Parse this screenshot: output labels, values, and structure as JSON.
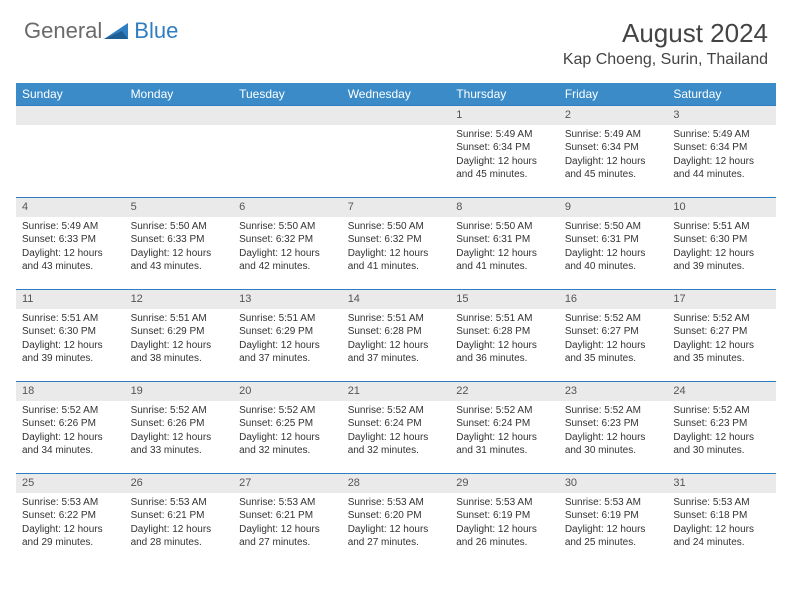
{
  "logo": {
    "textGeneral": "General",
    "textBlue": "Blue",
    "grayColor": "#6a6a6a",
    "blueColor": "#2f7ec2"
  },
  "header": {
    "title": "August 2024",
    "location": "Kap Choeng, Surin, Thailand"
  },
  "colors": {
    "headerRow": "#3b8bc8",
    "dayBar": "#eaeaea",
    "border": "#2f7ec2",
    "text": "#333"
  },
  "daysOfWeek": [
    "Sunday",
    "Monday",
    "Tuesday",
    "Wednesday",
    "Thursday",
    "Friday",
    "Saturday"
  ],
  "weeks": [
    [
      null,
      null,
      null,
      null,
      {
        "n": "1",
        "sr": "5:49 AM",
        "ss": "6:34 PM",
        "dl": "12 hours and 45 minutes."
      },
      {
        "n": "2",
        "sr": "5:49 AM",
        "ss": "6:34 PM",
        "dl": "12 hours and 45 minutes."
      },
      {
        "n": "3",
        "sr": "5:49 AM",
        "ss": "6:34 PM",
        "dl": "12 hours and 44 minutes."
      }
    ],
    [
      {
        "n": "4",
        "sr": "5:49 AM",
        "ss": "6:33 PM",
        "dl": "12 hours and 43 minutes."
      },
      {
        "n": "5",
        "sr": "5:50 AM",
        "ss": "6:33 PM",
        "dl": "12 hours and 43 minutes."
      },
      {
        "n": "6",
        "sr": "5:50 AM",
        "ss": "6:32 PM",
        "dl": "12 hours and 42 minutes."
      },
      {
        "n": "7",
        "sr": "5:50 AM",
        "ss": "6:32 PM",
        "dl": "12 hours and 41 minutes."
      },
      {
        "n": "8",
        "sr": "5:50 AM",
        "ss": "6:31 PM",
        "dl": "12 hours and 41 minutes."
      },
      {
        "n": "9",
        "sr": "5:50 AM",
        "ss": "6:31 PM",
        "dl": "12 hours and 40 minutes."
      },
      {
        "n": "10",
        "sr": "5:51 AM",
        "ss": "6:30 PM",
        "dl": "12 hours and 39 minutes."
      }
    ],
    [
      {
        "n": "11",
        "sr": "5:51 AM",
        "ss": "6:30 PM",
        "dl": "12 hours and 39 minutes."
      },
      {
        "n": "12",
        "sr": "5:51 AM",
        "ss": "6:29 PM",
        "dl": "12 hours and 38 minutes."
      },
      {
        "n": "13",
        "sr": "5:51 AM",
        "ss": "6:29 PM",
        "dl": "12 hours and 37 minutes."
      },
      {
        "n": "14",
        "sr": "5:51 AM",
        "ss": "6:28 PM",
        "dl": "12 hours and 37 minutes."
      },
      {
        "n": "15",
        "sr": "5:51 AM",
        "ss": "6:28 PM",
        "dl": "12 hours and 36 minutes."
      },
      {
        "n": "16",
        "sr": "5:52 AM",
        "ss": "6:27 PM",
        "dl": "12 hours and 35 minutes."
      },
      {
        "n": "17",
        "sr": "5:52 AM",
        "ss": "6:27 PM",
        "dl": "12 hours and 35 minutes."
      }
    ],
    [
      {
        "n": "18",
        "sr": "5:52 AM",
        "ss": "6:26 PM",
        "dl": "12 hours and 34 minutes."
      },
      {
        "n": "19",
        "sr": "5:52 AM",
        "ss": "6:26 PM",
        "dl": "12 hours and 33 minutes."
      },
      {
        "n": "20",
        "sr": "5:52 AM",
        "ss": "6:25 PM",
        "dl": "12 hours and 32 minutes."
      },
      {
        "n": "21",
        "sr": "5:52 AM",
        "ss": "6:24 PM",
        "dl": "12 hours and 32 minutes."
      },
      {
        "n": "22",
        "sr": "5:52 AM",
        "ss": "6:24 PM",
        "dl": "12 hours and 31 minutes."
      },
      {
        "n": "23",
        "sr": "5:52 AM",
        "ss": "6:23 PM",
        "dl": "12 hours and 30 minutes."
      },
      {
        "n": "24",
        "sr": "5:52 AM",
        "ss": "6:23 PM",
        "dl": "12 hours and 30 minutes."
      }
    ],
    [
      {
        "n": "25",
        "sr": "5:53 AM",
        "ss": "6:22 PM",
        "dl": "12 hours and 29 minutes."
      },
      {
        "n": "26",
        "sr": "5:53 AM",
        "ss": "6:21 PM",
        "dl": "12 hours and 28 minutes."
      },
      {
        "n": "27",
        "sr": "5:53 AM",
        "ss": "6:21 PM",
        "dl": "12 hours and 27 minutes."
      },
      {
        "n": "28",
        "sr": "5:53 AM",
        "ss": "6:20 PM",
        "dl": "12 hours and 27 minutes."
      },
      {
        "n": "29",
        "sr": "5:53 AM",
        "ss": "6:19 PM",
        "dl": "12 hours and 26 minutes."
      },
      {
        "n": "30",
        "sr": "5:53 AM",
        "ss": "6:19 PM",
        "dl": "12 hours and 25 minutes."
      },
      {
        "n": "31",
        "sr": "5:53 AM",
        "ss": "6:18 PM",
        "dl": "12 hours and 24 minutes."
      }
    ]
  ],
  "labels": {
    "sunrise": "Sunrise:",
    "sunset": "Sunset:",
    "daylight": "Daylight:"
  }
}
